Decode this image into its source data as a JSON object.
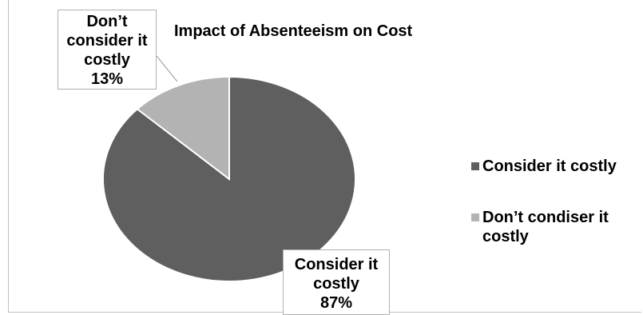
{
  "chart_data": {
    "type": "pie",
    "title": "Impact of Absenteeism on Cost",
    "categories": [
      "Consider it costly",
      "Don’t condiser it costly"
    ],
    "values": [
      87,
      13
    ],
    "colors": [
      "#5f5f5f",
      "#b3b3b3"
    ],
    "data_labels": [
      {
        "lines": [
          "Consider it",
          "costly",
          "87%"
        ]
      },
      {
        "lines": [
          "Don’t",
          "consider it",
          "costly",
          "13%"
        ]
      }
    ],
    "legend": {
      "position": "right",
      "entries": [
        "Consider it costly",
        "Don’t condiser it costly"
      ]
    }
  }
}
